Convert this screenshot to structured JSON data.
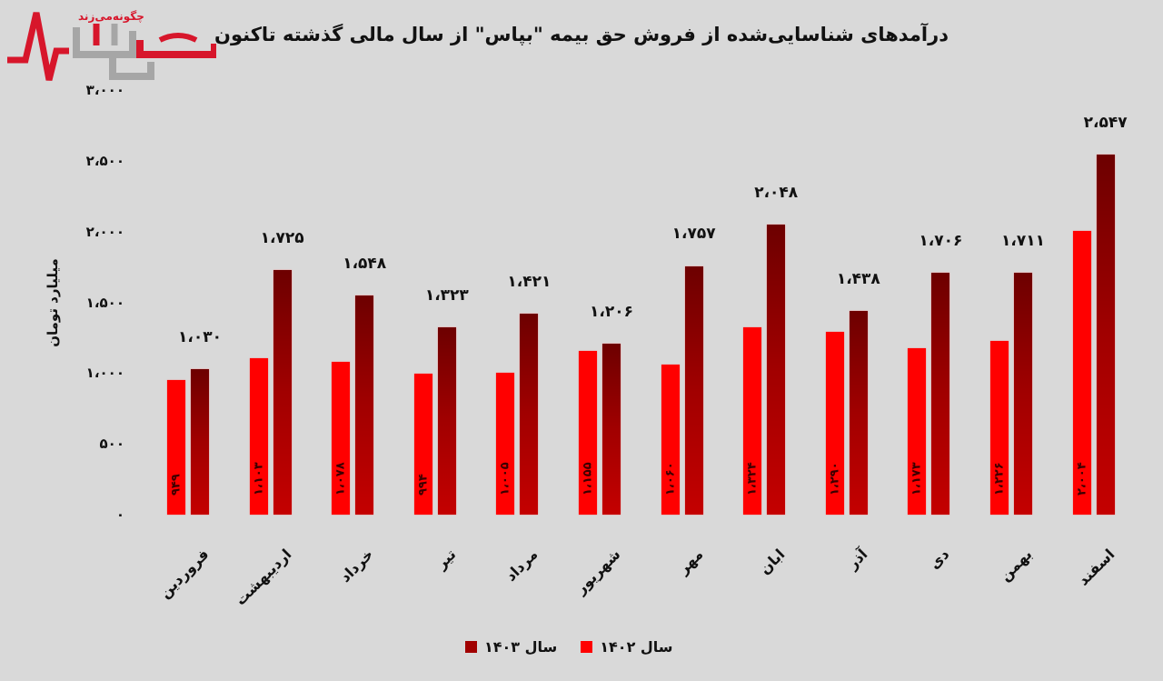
{
  "header": {
    "title": "درآمدهای شناسایی‌شده از فروش حق بیمه \"بپاس\" از سال مالی گذشته تاکنون",
    "logo": {
      "tagline": "چگونه‌می‌زند",
      "name": "نبض بازار",
      "red": "#d7162b",
      "gray": "#a6a6a6"
    }
  },
  "colors": {
    "y1402": "#ff0000",
    "y1403_top": "#6d0000",
    "y1403_bottom": "#c40000",
    "background": "#d9d9d9"
  },
  "axis": {
    "ylabel": "میلیارد تومان",
    "ticks": [
      {
        "value": 0,
        "label": "۰"
      },
      {
        "value": 500,
        "label": "۵۰۰"
      },
      {
        "value": 1000,
        "label": "۱،۰۰۰"
      },
      {
        "value": 1500,
        "label": "۱،۵۰۰"
      },
      {
        "value": 2000,
        "label": "۲،۰۰۰"
      },
      {
        "value": 2500,
        "label": "۲،۵۰۰"
      },
      {
        "value": 3000,
        "label": "۳،۰۰۰"
      }
    ]
  },
  "legend": {
    "y1402": "سال ۱۴۰۲",
    "y1403": "سال ۱۴۰۳"
  },
  "chart_data": {
    "type": "bar",
    "title": "درآمدهای شناسایی‌شده از فروش حق بیمه \"بپاس\" از سال مالی گذشته تاکنون",
    "xlabel": "",
    "ylabel": "میلیارد تومان",
    "ylim": [
      0,
      3000
    ],
    "grid": false,
    "legend_position": "bottom",
    "categories": [
      "فروردین",
      "اردیبهشت",
      "خرداد",
      "تیر",
      "مرداد",
      "شهریور",
      "مهر",
      "ابان",
      "آذر",
      "دی",
      "بهمن",
      "اسفند"
    ],
    "series": [
      {
        "name": "سال ۱۴۰۲",
        "values": [
          949,
          1103,
          1078,
          994,
          1005,
          1155,
          1060,
          1324,
          1290,
          1173,
          1226,
          2004
        ],
        "labels": [
          "۹۴۹",
          "۱،۱۰۳",
          "۱،۰۷۸",
          "۹۹۴",
          "۱،۰۰۵",
          "۱،۱۵۵",
          "۱،۰۶۰",
          "۱،۳۲۴",
          "۱،۲۹۰",
          "۱،۱۷۳",
          "۱،۲۲۶",
          "۲،۰۰۴"
        ]
      },
      {
        "name": "سال ۱۴۰۳",
        "values": [
          1030,
          1725,
          1548,
          1323,
          1421,
          1206,
          1757,
          2048,
          1438,
          1706,
          1711,
          2547
        ],
        "labels": [
          "۱،۰۳۰",
          "۱،۷۲۵",
          "۱،۵۴۸",
          "۱،۳۲۳",
          "۱،۴۲۱",
          "۱،۲۰۶",
          "۱،۷۵۷",
          "۲،۰۴۸",
          "۱،۴۳۸",
          "۱،۷۰۶",
          "۱،۷۱۱",
          "۲،۵۴۷"
        ]
      }
    ]
  }
}
